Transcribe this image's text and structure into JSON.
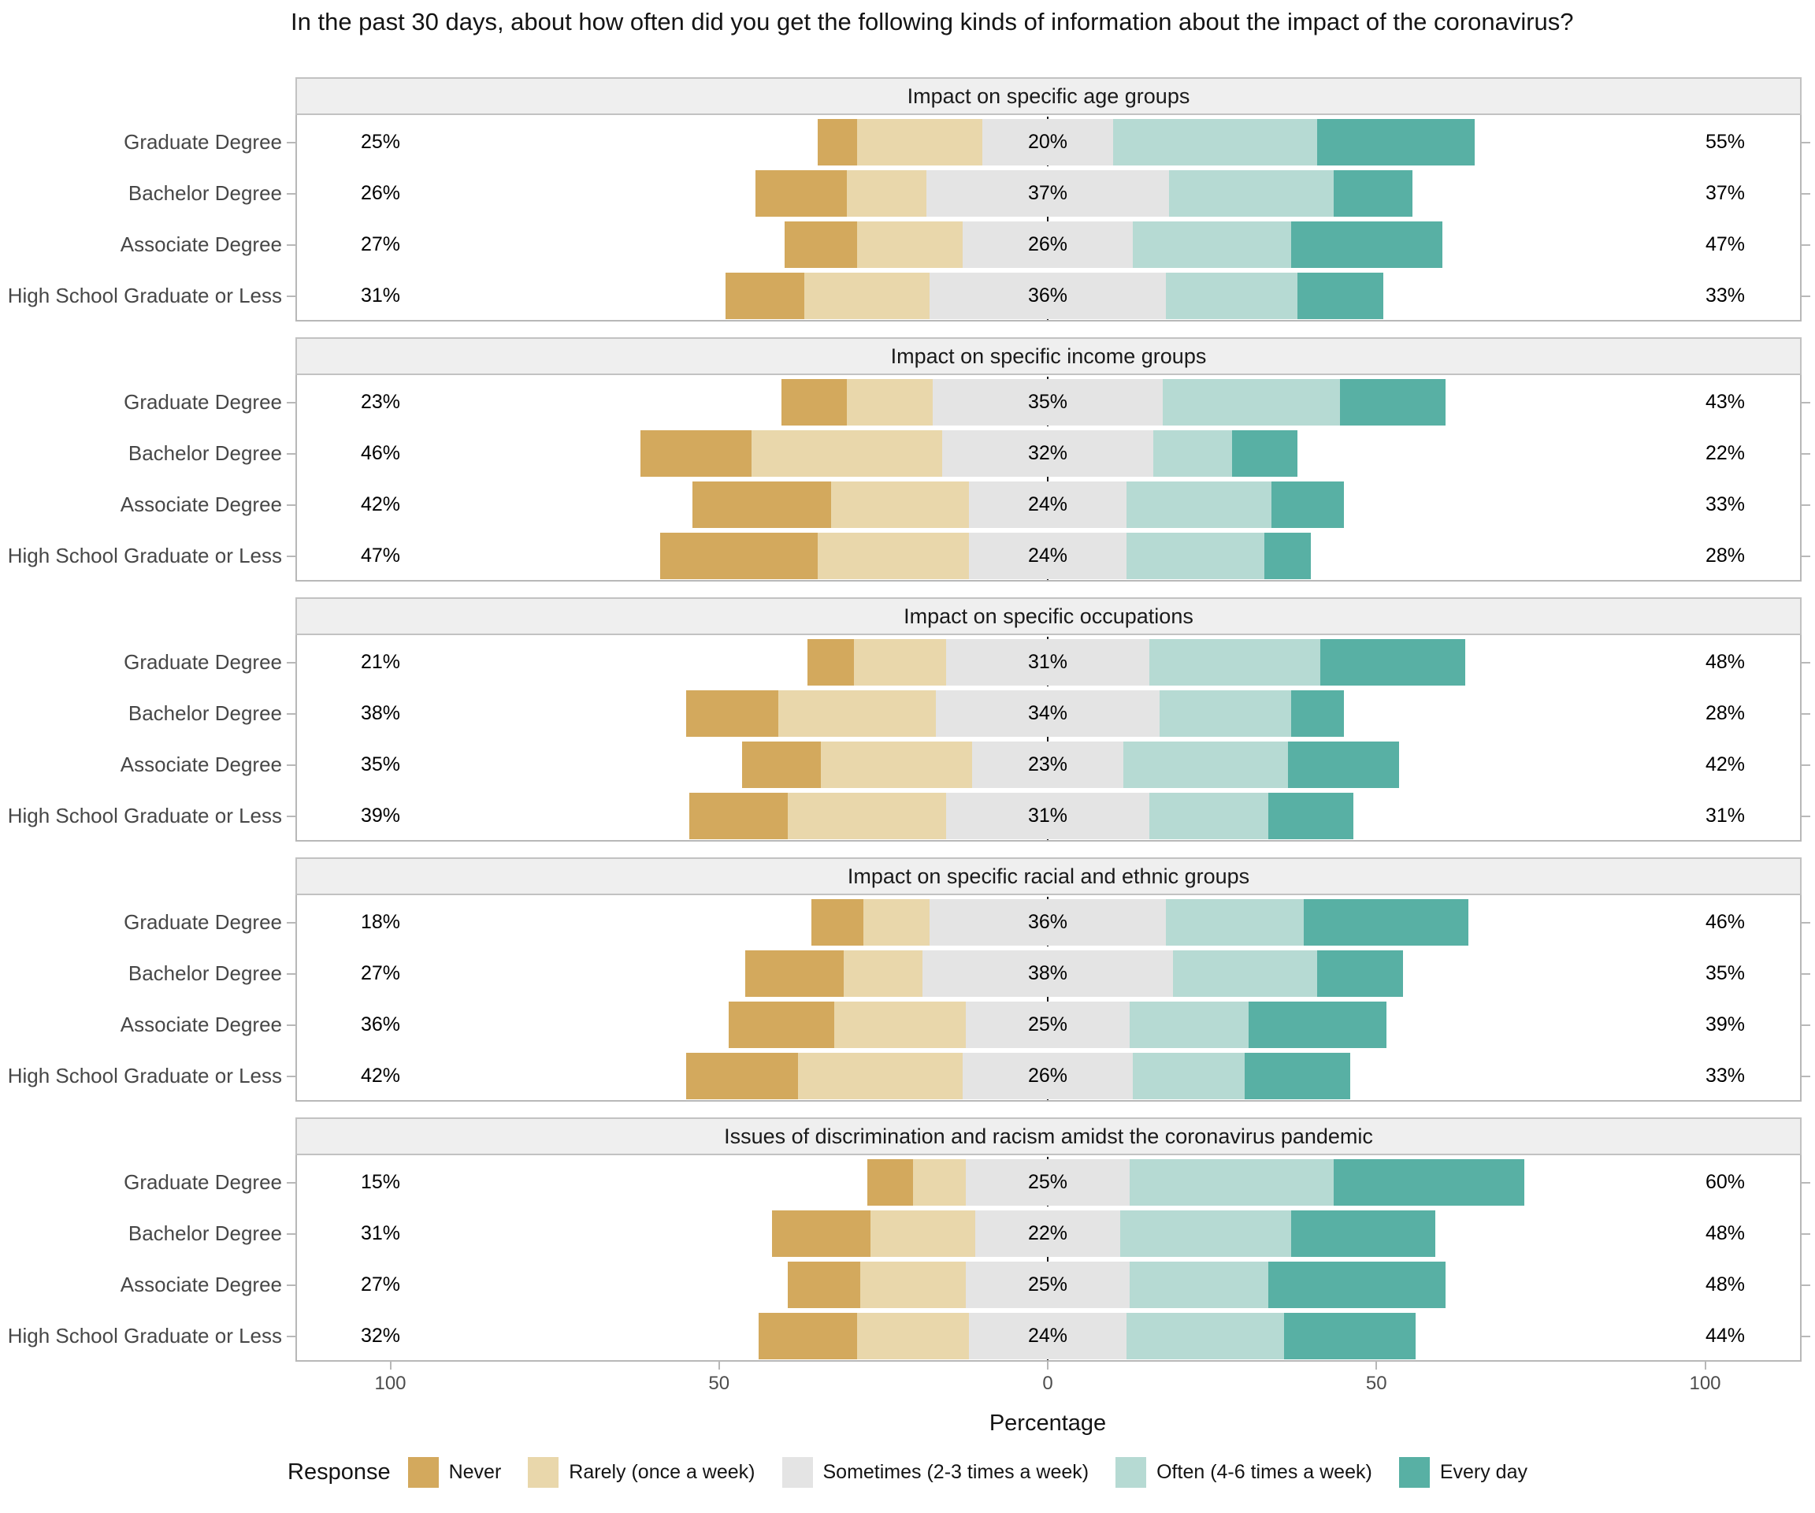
{
  "chart_data": {
    "type": "diverging_stacked_bar",
    "title": "In the past 30 days, about how often did you get the following kinds of information about the impact of the coronavirus?",
    "xlabel": "Percentage",
    "legend_title": "Response",
    "legend_position": "bottom",
    "x_ticks": [
      {
        "label": "100",
        "value": -100
      },
      {
        "label": "50",
        "value": -50
      },
      {
        "label": "0",
        "value": 0
      },
      {
        "label": "50",
        "value": 50
      },
      {
        "label": "100",
        "value": 100
      }
    ],
    "x_axis_note": "diverging axis, Sometimes category centered on zero",
    "responses": [
      {
        "name": "Never",
        "color": "#d3a95d"
      },
      {
        "name": "Rarely (once a week)",
        "color": "#e9d7ab"
      },
      {
        "name": "Sometimes (2-3 times a week)",
        "color": "#e4e4e4"
      },
      {
        "name": "Often (4-6 times a week)",
        "color": "#b6dad3"
      },
      {
        "name": "Every day",
        "color": "#58b0a4"
      }
    ],
    "categories": [
      "Graduate Degree",
      "Bachelor Degree",
      "Associate Degree",
      "High School Graduate or Less"
    ],
    "panels": [
      {
        "title": "Impact on specific age groups",
        "rows": [
          {
            "category": "Graduate Degree",
            "values": [
              6,
              19,
              20,
              31,
              24
            ],
            "labels": {
              "left": "25%",
              "mid": "20%",
              "right": "55%"
            }
          },
          {
            "category": "Bachelor Degree",
            "values": [
              14,
              12,
              37,
              25,
              12
            ],
            "labels": {
              "left": "26%",
              "mid": "37%",
              "right": "37%"
            }
          },
          {
            "category": "Associate Degree",
            "values": [
              11,
              16,
              26,
              24,
              23
            ],
            "labels": {
              "left": "27%",
              "mid": "26%",
              "right": "47%"
            }
          },
          {
            "category": "High School Graduate or Less",
            "values": [
              12,
              19,
              36,
              20,
              13
            ],
            "labels": {
              "left": "31%",
              "mid": "36%",
              "right": "33%"
            }
          }
        ]
      },
      {
        "title": "Impact on specific income groups",
        "rows": [
          {
            "category": "Graduate Degree",
            "values": [
              10,
              13,
              35,
              27,
              16
            ],
            "labels": {
              "left": "23%",
              "mid": "35%",
              "right": "43%"
            }
          },
          {
            "category": "Bachelor Degree",
            "values": [
              17,
              29,
              32,
              12,
              10
            ],
            "labels": {
              "left": "46%",
              "mid": "32%",
              "right": "22%"
            }
          },
          {
            "category": "Associate Degree",
            "values": [
              21,
              21,
              24,
              22,
              11
            ],
            "labels": {
              "left": "42%",
              "mid": "24%",
              "right": "33%"
            }
          },
          {
            "category": "High School Graduate or Less",
            "values": [
              24,
              23,
              24,
              21,
              7
            ],
            "labels": {
              "left": "47%",
              "mid": "24%",
              "right": "28%"
            }
          }
        ]
      },
      {
        "title": "Impact on specific occupations",
        "rows": [
          {
            "category": "Graduate Degree",
            "values": [
              7,
              14,
              31,
              26,
              22
            ],
            "labels": {
              "left": "21%",
              "mid": "31%",
              "right": "48%"
            }
          },
          {
            "category": "Bachelor Degree",
            "values": [
              14,
              24,
              34,
              20,
              8
            ],
            "labels": {
              "left": "38%",
              "mid": "34%",
              "right": "28%"
            }
          },
          {
            "category": "Associate Degree",
            "values": [
              12,
              23,
              23,
              25,
              17
            ],
            "labels": {
              "left": "35%",
              "mid": "23%",
              "right": "42%"
            }
          },
          {
            "category": "High School Graduate or Less",
            "values": [
              15,
              24,
              31,
              18,
              13
            ],
            "labels": {
              "left": "39%",
              "mid": "31%",
              "right": "31%"
            }
          }
        ]
      },
      {
        "title": "Impact on specific racial and ethnic groups",
        "rows": [
          {
            "category": "Graduate Degree",
            "values": [
              8,
              10,
              36,
              21,
              25
            ],
            "labels": {
              "left": "18%",
              "mid": "36%",
              "right": "46%"
            }
          },
          {
            "category": "Bachelor Degree",
            "values": [
              15,
              12,
              38,
              22,
              13
            ],
            "labels": {
              "left": "27%",
              "mid": "38%",
              "right": "35%"
            }
          },
          {
            "category": "Associate Degree",
            "values": [
              16,
              20,
              25,
              18,
              21
            ],
            "labels": {
              "left": "36%",
              "mid": "25%",
              "right": "39%"
            }
          },
          {
            "category": "High School Graduate or Less",
            "values": [
              17,
              25,
              26,
              17,
              16
            ],
            "labels": {
              "left": "42%",
              "mid": "26%",
              "right": "33%"
            }
          }
        ]
      },
      {
        "title": "Issues of discrimination and racism amidst the coronavirus pandemic",
        "rows": [
          {
            "category": "Graduate Degree",
            "values": [
              7,
              8,
              25,
              31,
              29
            ],
            "labels": {
              "left": "15%",
              "mid": "25%",
              "right": "60%"
            }
          },
          {
            "category": "Bachelor Degree",
            "values": [
              15,
              16,
              22,
              26,
              22
            ],
            "labels": {
              "left": "31%",
              "mid": "22%",
              "right": "48%"
            }
          },
          {
            "category": "Associate Degree",
            "values": [
              11,
              16,
              25,
              21,
              27
            ],
            "labels": {
              "left": "27%",
              "mid": "25%",
              "right": "48%"
            }
          },
          {
            "category": "High School Graduate or Less",
            "values": [
              15,
              17,
              24,
              24,
              20
            ],
            "labels": {
              "left": "32%",
              "mid": "24%",
              "right": "44%"
            }
          }
        ]
      }
    ]
  }
}
